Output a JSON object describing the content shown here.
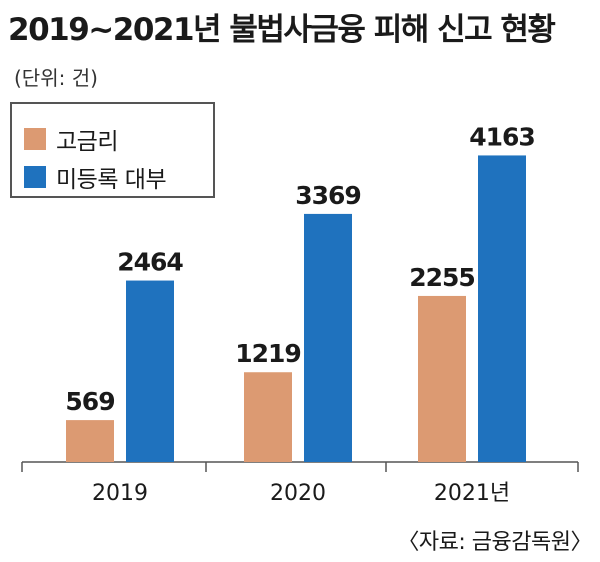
{
  "title": "2019~2021년 불법사금융 피해 신고 현황",
  "unit": "(단위: 건)",
  "source": "〈자료: 금융감독원〉",
  "chart_data": {
    "type": "bar",
    "categories": [
      "2019",
      "2020",
      "2021년"
    ],
    "series": [
      {
        "name": "고금리",
        "color": "#DC9A72",
        "values": [
          569,
          1219,
          2255
        ]
      },
      {
        "name": "미등록 대부",
        "color": "#1F72BE",
        "values": [
          2464,
          3369,
          4163
        ]
      }
    ],
    "ylim": [
      0,
      4500
    ],
    "grid": false,
    "legend": "top-left",
    "data_labels": true
  }
}
